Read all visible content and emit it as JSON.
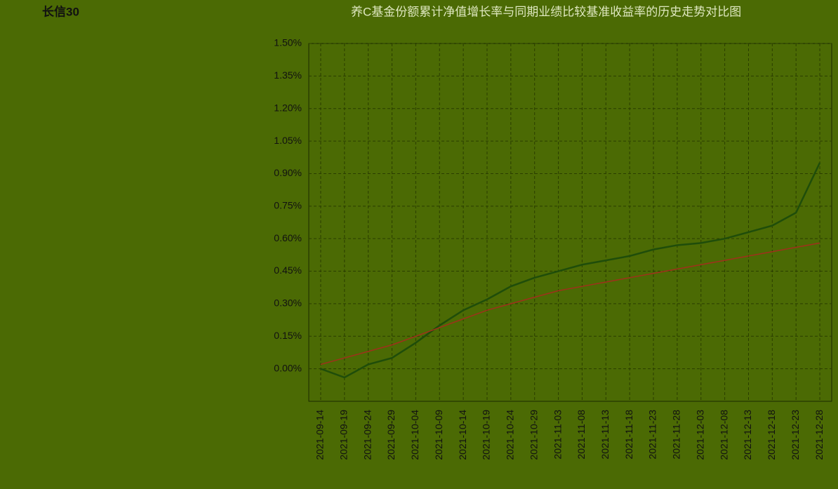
{
  "chart_data": {
    "type": "line",
    "title": "长信30",
    "subtitle": "养C基金份额累计净值增长率与同期业绩比较基准收益率的历史走势对比图",
    "categories": [
      "2021-09-14",
      "2021-09-19",
      "2021-09-24",
      "2021-09-29",
      "2021-10-04",
      "2021-10-09",
      "2021-10-14",
      "2021-10-19",
      "2021-10-24",
      "2021-10-29",
      "2021-11-03",
      "2021-11-08",
      "2021-11-13",
      "2021-11-18",
      "2021-11-23",
      "2021-11-28",
      "2021-12-03",
      "2021-12-08",
      "2021-12-13",
      "2021-12-18",
      "2021-12-23",
      "2021-12-28"
    ],
    "series": [
      {
        "color": "#1f4d0a",
        "values": [
          0.0,
          -0.04,
          0.02,
          0.05,
          0.12,
          0.2,
          0.27,
          0.32,
          0.38,
          0.42,
          0.45,
          0.48,
          0.5,
          0.52,
          0.55,
          0.57,
          0.58,
          0.6,
          0.63,
          0.66,
          0.72,
          0.95
        ]
      },
      {
        "color": "#a0301c",
        "values": [
          0.02,
          0.05,
          0.08,
          0.11,
          0.15,
          0.19,
          0.23,
          0.27,
          0.3,
          0.33,
          0.36,
          0.38,
          0.4,
          0.42,
          0.44,
          0.46,
          0.48,
          0.5,
          0.52,
          0.54,
          0.56,
          0.58
        ]
      }
    ],
    "ylim": [
      -0.15,
      1.5
    ],
    "yticks": [
      {
        "value": 0,
        "label": "0.00%"
      },
      {
        "value": 0.15,
        "label": "0.15%"
      },
      {
        "value": 0.3,
        "label": "0.30%"
      },
      {
        "value": 0.45,
        "label": "0.45%"
      },
      {
        "value": 0.6,
        "label": "0.60%"
      },
      {
        "value": 0.75,
        "label": "0.75%"
      },
      {
        "value": 0.9,
        "label": "0.90%"
      },
      {
        "value": 1.05,
        "label": "1.05%"
      },
      {
        "value": 1.2,
        "label": "1.20%"
      },
      {
        "value": 1.35,
        "label": "1.35%"
      },
      {
        "value": 1.5,
        "label": "1.50%"
      }
    ],
    "grid": true
  }
}
